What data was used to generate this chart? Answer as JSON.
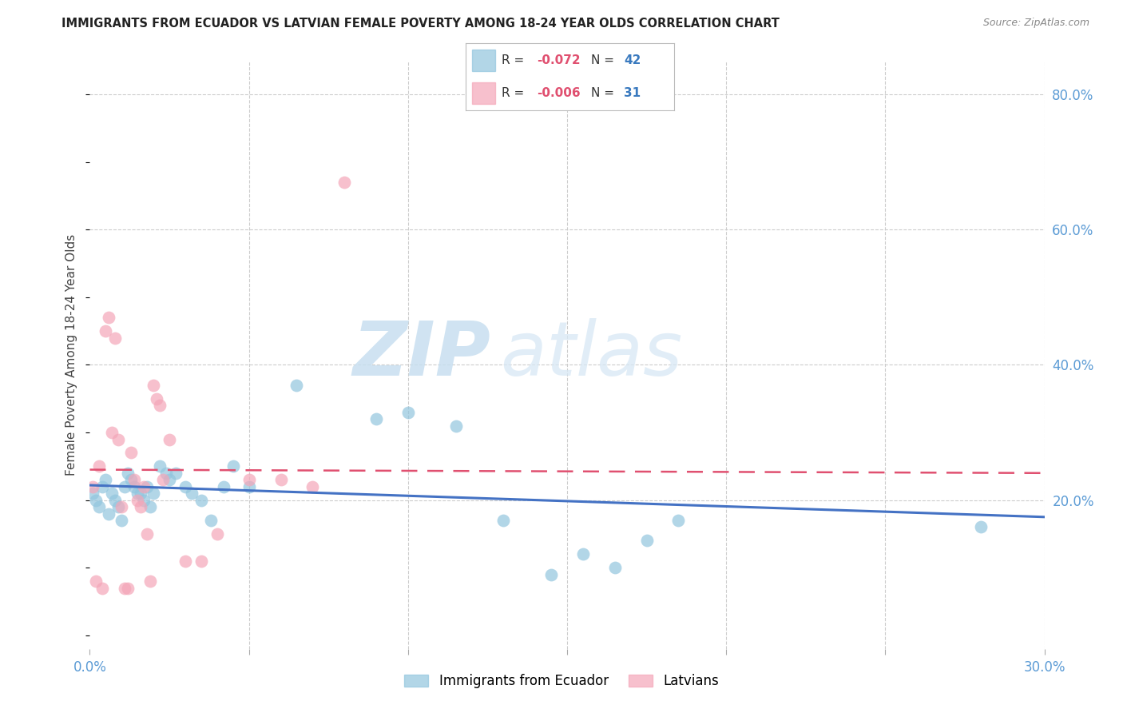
{
  "title": "IMMIGRANTS FROM ECUADOR VS LATVIAN FEMALE POVERTY AMONG 18-24 YEAR OLDS CORRELATION CHART",
  "source": "Source: ZipAtlas.com",
  "ylabel": "Female Poverty Among 18-24 Year Olds",
  "x_min": 0.0,
  "x_max": 0.3,
  "y_min": -0.02,
  "y_max": 0.85,
  "x_ticks": [
    0.0,
    0.05,
    0.1,
    0.15,
    0.2,
    0.25,
    0.3
  ],
  "x_tick_labels": [
    "0.0%",
    "",
    "",
    "",
    "",
    "",
    "30.0%"
  ],
  "y_ticks_right": [
    0.2,
    0.4,
    0.6,
    0.8
  ],
  "y_tick_labels_right": [
    "20.0%",
    "40.0%",
    "60.0%",
    "80.0%"
  ],
  "grid_color": "#cccccc",
  "background_color": "#ffffff",
  "blue_color": "#92c5de",
  "pink_color": "#f4a6b8",
  "legend_r_blue": "-0.072",
  "legend_n_blue": "42",
  "legend_r_pink": "-0.006",
  "legend_n_pink": "31",
  "legend_label_blue": "Immigrants from Ecuador",
  "legend_label_pink": "Latvians",
  "watermark_zip": "ZIP",
  "watermark_atlas": "atlas",
  "blue_scatter_x": [
    0.001,
    0.002,
    0.003,
    0.004,
    0.005,
    0.006,
    0.007,
    0.008,
    0.009,
    0.01,
    0.011,
    0.012,
    0.013,
    0.014,
    0.015,
    0.016,
    0.017,
    0.018,
    0.019,
    0.02,
    0.022,
    0.024,
    0.025,
    0.027,
    0.03,
    0.032,
    0.035,
    0.038,
    0.042,
    0.045,
    0.05,
    0.065,
    0.09,
    0.1,
    0.115,
    0.13,
    0.145,
    0.155,
    0.165,
    0.175,
    0.185,
    0.28
  ],
  "blue_scatter_y": [
    0.21,
    0.2,
    0.19,
    0.22,
    0.23,
    0.18,
    0.21,
    0.2,
    0.19,
    0.17,
    0.22,
    0.24,
    0.23,
    0.22,
    0.21,
    0.21,
    0.2,
    0.22,
    0.19,
    0.21,
    0.25,
    0.24,
    0.23,
    0.24,
    0.22,
    0.21,
    0.2,
    0.17,
    0.22,
    0.25,
    0.22,
    0.37,
    0.32,
    0.33,
    0.31,
    0.17,
    0.09,
    0.12,
    0.1,
    0.14,
    0.17,
    0.16
  ],
  "pink_scatter_x": [
    0.001,
    0.002,
    0.003,
    0.004,
    0.005,
    0.006,
    0.007,
    0.008,
    0.009,
    0.01,
    0.011,
    0.012,
    0.013,
    0.014,
    0.015,
    0.016,
    0.017,
    0.018,
    0.019,
    0.02,
    0.021,
    0.022,
    0.023,
    0.025,
    0.03,
    0.035,
    0.04,
    0.05,
    0.06,
    0.07,
    0.08
  ],
  "pink_scatter_y": [
    0.22,
    0.08,
    0.25,
    0.07,
    0.45,
    0.47,
    0.3,
    0.44,
    0.29,
    0.19,
    0.07,
    0.07,
    0.27,
    0.23,
    0.2,
    0.19,
    0.22,
    0.15,
    0.08,
    0.37,
    0.35,
    0.34,
    0.23,
    0.29,
    0.11,
    0.11,
    0.15,
    0.23,
    0.23,
    0.22,
    0.67
  ],
  "blue_trend_x_start": 0.0,
  "blue_trend_x_end": 0.3,
  "blue_trend_y_start": 0.222,
  "blue_trend_y_end": 0.175,
  "pink_trend_x_start": 0.0,
  "pink_trend_x_end": 0.3,
  "pink_trend_y_start": 0.245,
  "pink_trend_y_end": 0.24
}
